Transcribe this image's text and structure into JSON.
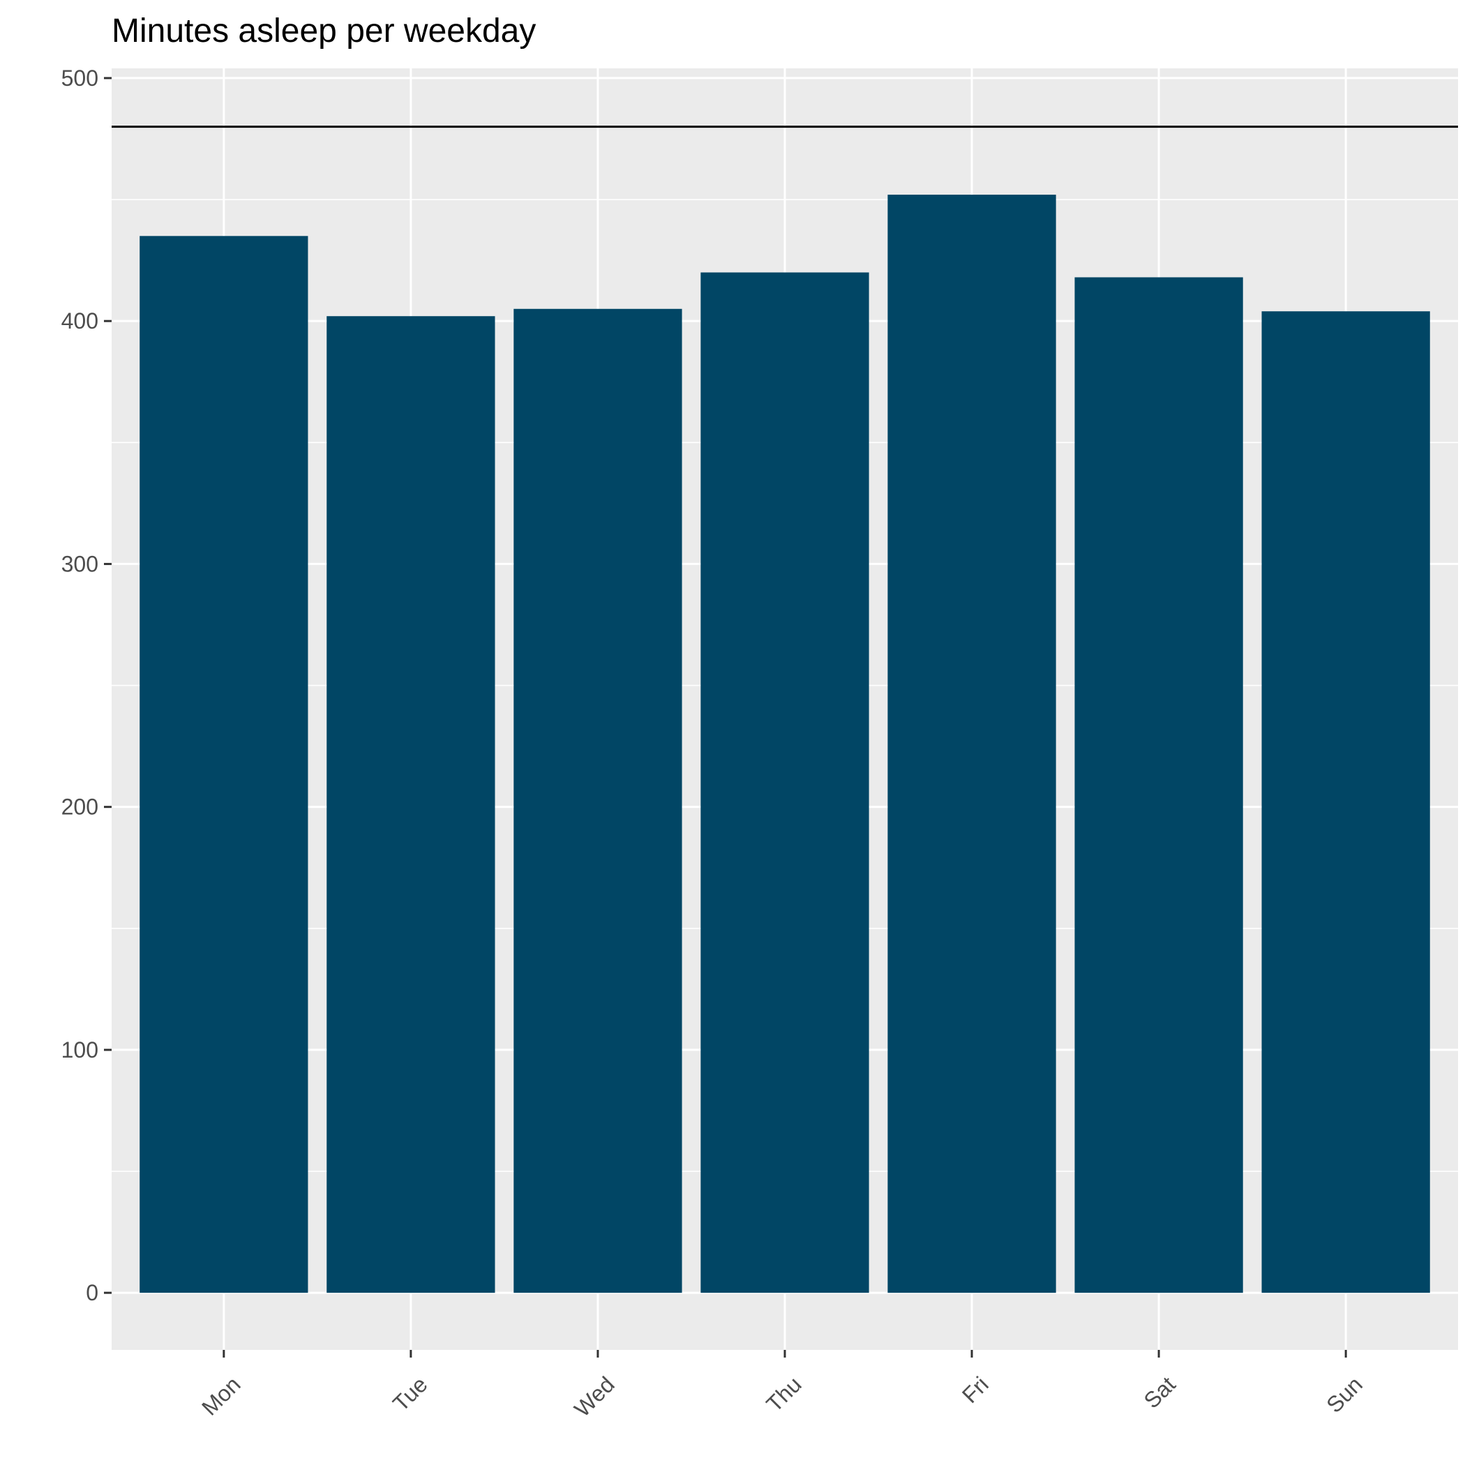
{
  "chart_data": {
    "type": "bar",
    "title": "Minutes asleep per weekday",
    "xlabel": "",
    "ylabel": "",
    "categories": [
      "Mon",
      "Tue",
      "Wed",
      "Thu",
      "Fri",
      "Sat",
      "Sun"
    ],
    "values": [
      435,
      402,
      405,
      420,
      452,
      418,
      404
    ],
    "ylim": [
      -23.5,
      504
    ],
    "yticks": [
      0,
      100,
      200,
      300,
      400,
      500
    ],
    "reference_line": 480,
    "grid": true,
    "colors": {
      "bar": "#014665",
      "panel": "#ebebeb",
      "grid": "#ffffff",
      "reference_line": "#000000",
      "tick_text": "#4d4d4d"
    }
  }
}
